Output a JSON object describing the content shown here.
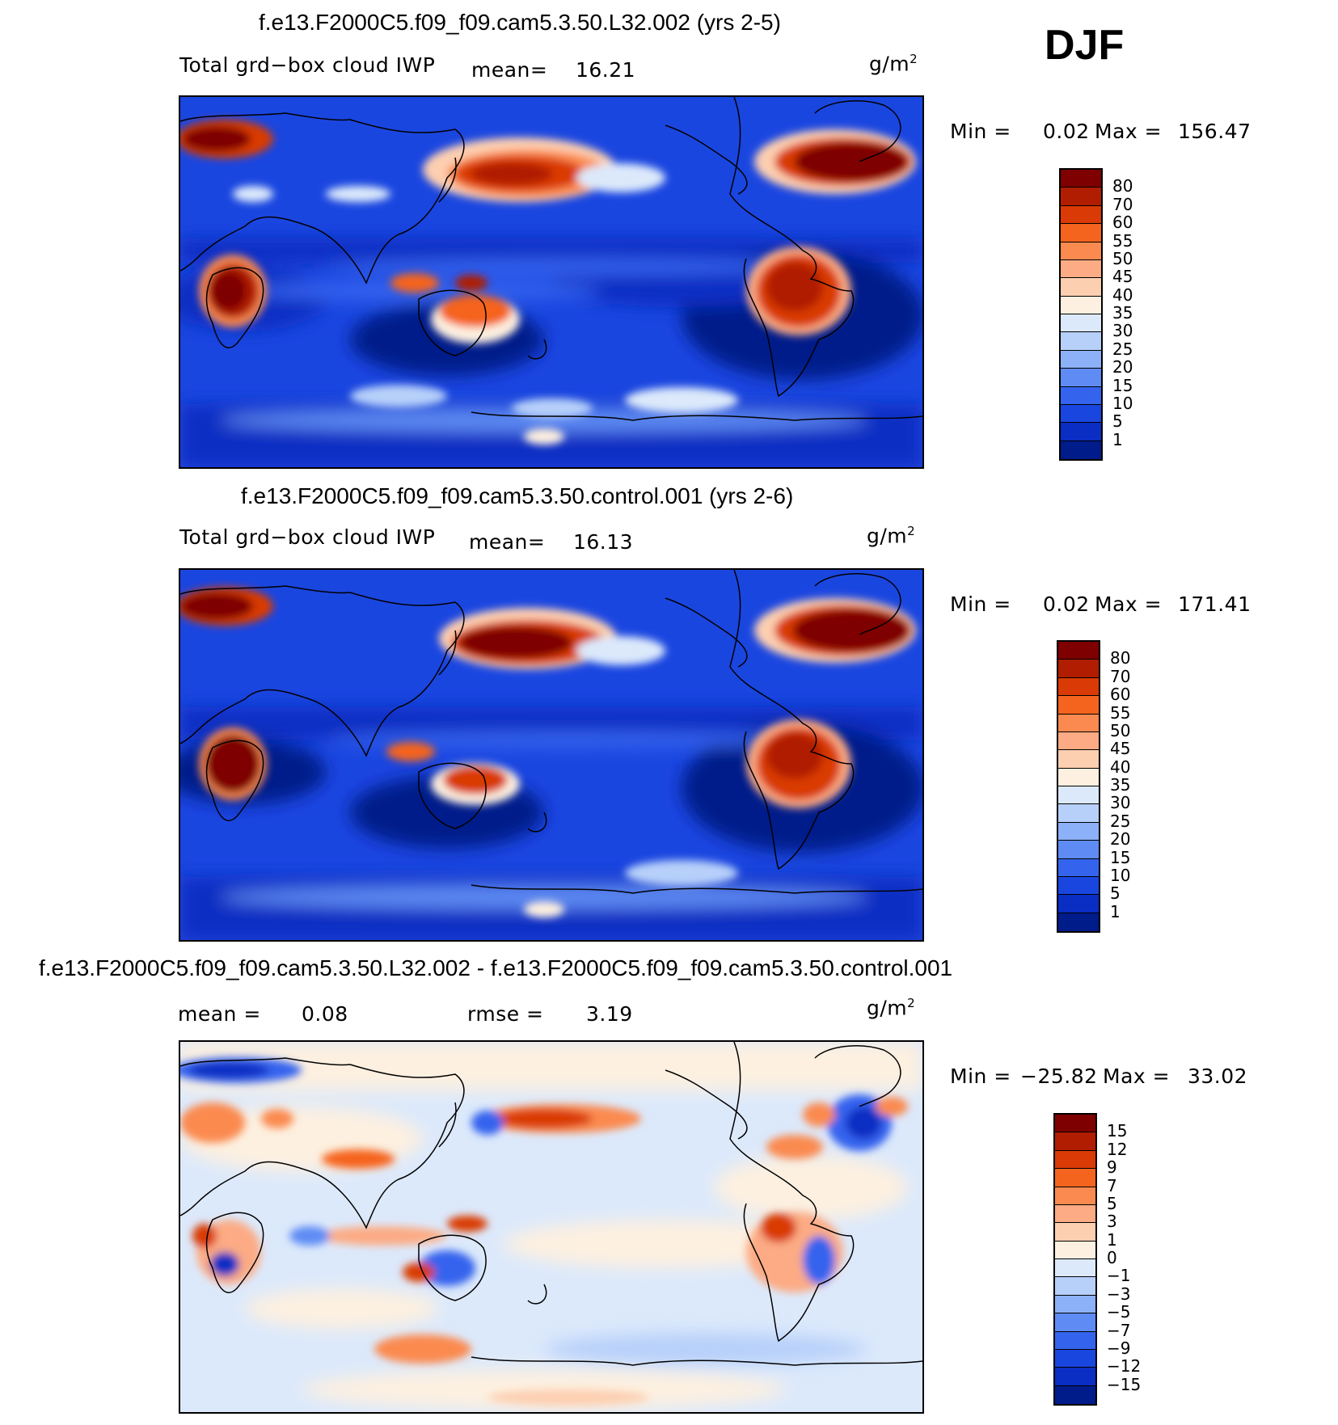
{
  "season": "DJF",
  "chart_data": [
    {
      "type": "heatmap",
      "title": "f.e13.F2000C5.f09_f09.cam5.3.50.L32.002 (yrs 2-5)",
      "variable": "Total grd−box cloud IWP",
      "mean_label": "mean=",
      "mean": "16.21",
      "units": "g/m",
      "units_exp": "2",
      "min_label": "Min =",
      "min": "0.02",
      "max_label": "Max =",
      "max": "156.47",
      "colorbar": {
        "levels": [
          "80",
          "70",
          "60",
          "55",
          "50",
          "45",
          "40",
          "35",
          "30",
          "25",
          "20",
          "15",
          "10",
          "5",
          "1"
        ],
        "colors": [
          "#7f0000",
          "#b01d00",
          "#d93a06",
          "#f5641e",
          "#fb8a50",
          "#fcab84",
          "#fdcfb1",
          "#fdf0e0",
          "#dce9fb",
          "#b7d0fa",
          "#8db1f8",
          "#5f8cf4",
          "#3464ee",
          "#1a46e0",
          "#0a2dc3",
          "#001b8a"
        ]
      }
    },
    {
      "type": "heatmap",
      "title": "f.e13.F2000C5.f09_f09.cam5.3.50.control.001 (yrs 2-6)",
      "variable": "Total grd−box cloud IWP",
      "mean_label": "mean=",
      "mean": "16.13",
      "units": "g/m",
      "units_exp": "2",
      "min_label": "Min =",
      "min": "0.02",
      "max_label": "Max =",
      "max": "171.41",
      "colorbar": {
        "levels": [
          "80",
          "70",
          "60",
          "55",
          "50",
          "45",
          "40",
          "35",
          "30",
          "25",
          "20",
          "15",
          "10",
          "5",
          "1"
        ],
        "colors": [
          "#7f0000",
          "#b01d00",
          "#d93a06",
          "#f5641e",
          "#fb8a50",
          "#fcab84",
          "#fdcfb1",
          "#fdf0e0",
          "#dce9fb",
          "#b7d0fa",
          "#8db1f8",
          "#5f8cf4",
          "#3464ee",
          "#1a46e0",
          "#0a2dc3",
          "#001b8a"
        ]
      }
    },
    {
      "type": "heatmap",
      "title": "f.e13.F2000C5.f09_f09.cam5.3.50.L32.002 - f.e13.F2000C5.f09_f09.cam5.3.50.control.001",
      "mean_label": "mean =",
      "mean": "0.08",
      "rmse_label": "rmse =",
      "rmse": "3.19",
      "units": "g/m",
      "units_exp": "2",
      "min_label": "Min =",
      "min": "−25.82",
      "max_label": "Max =",
      "max": "33.02",
      "colorbar": {
        "levels": [
          "15",
          "12",
          "9",
          "7",
          "5",
          "3",
          "1",
          "0",
          "−1",
          "−3",
          "−5",
          "−7",
          "−9",
          "−12",
          "−15"
        ],
        "colors": [
          "#7f0000",
          "#b01d00",
          "#d93a06",
          "#f5641e",
          "#fb8a50",
          "#fcab84",
          "#fdcfb1",
          "#fdf0e0",
          "#dce9fb",
          "#b7d0fa",
          "#8db1f8",
          "#5f8cf4",
          "#3464ee",
          "#1a46e0",
          "#0a2dc3",
          "#001b8a"
        ]
      }
    }
  ]
}
